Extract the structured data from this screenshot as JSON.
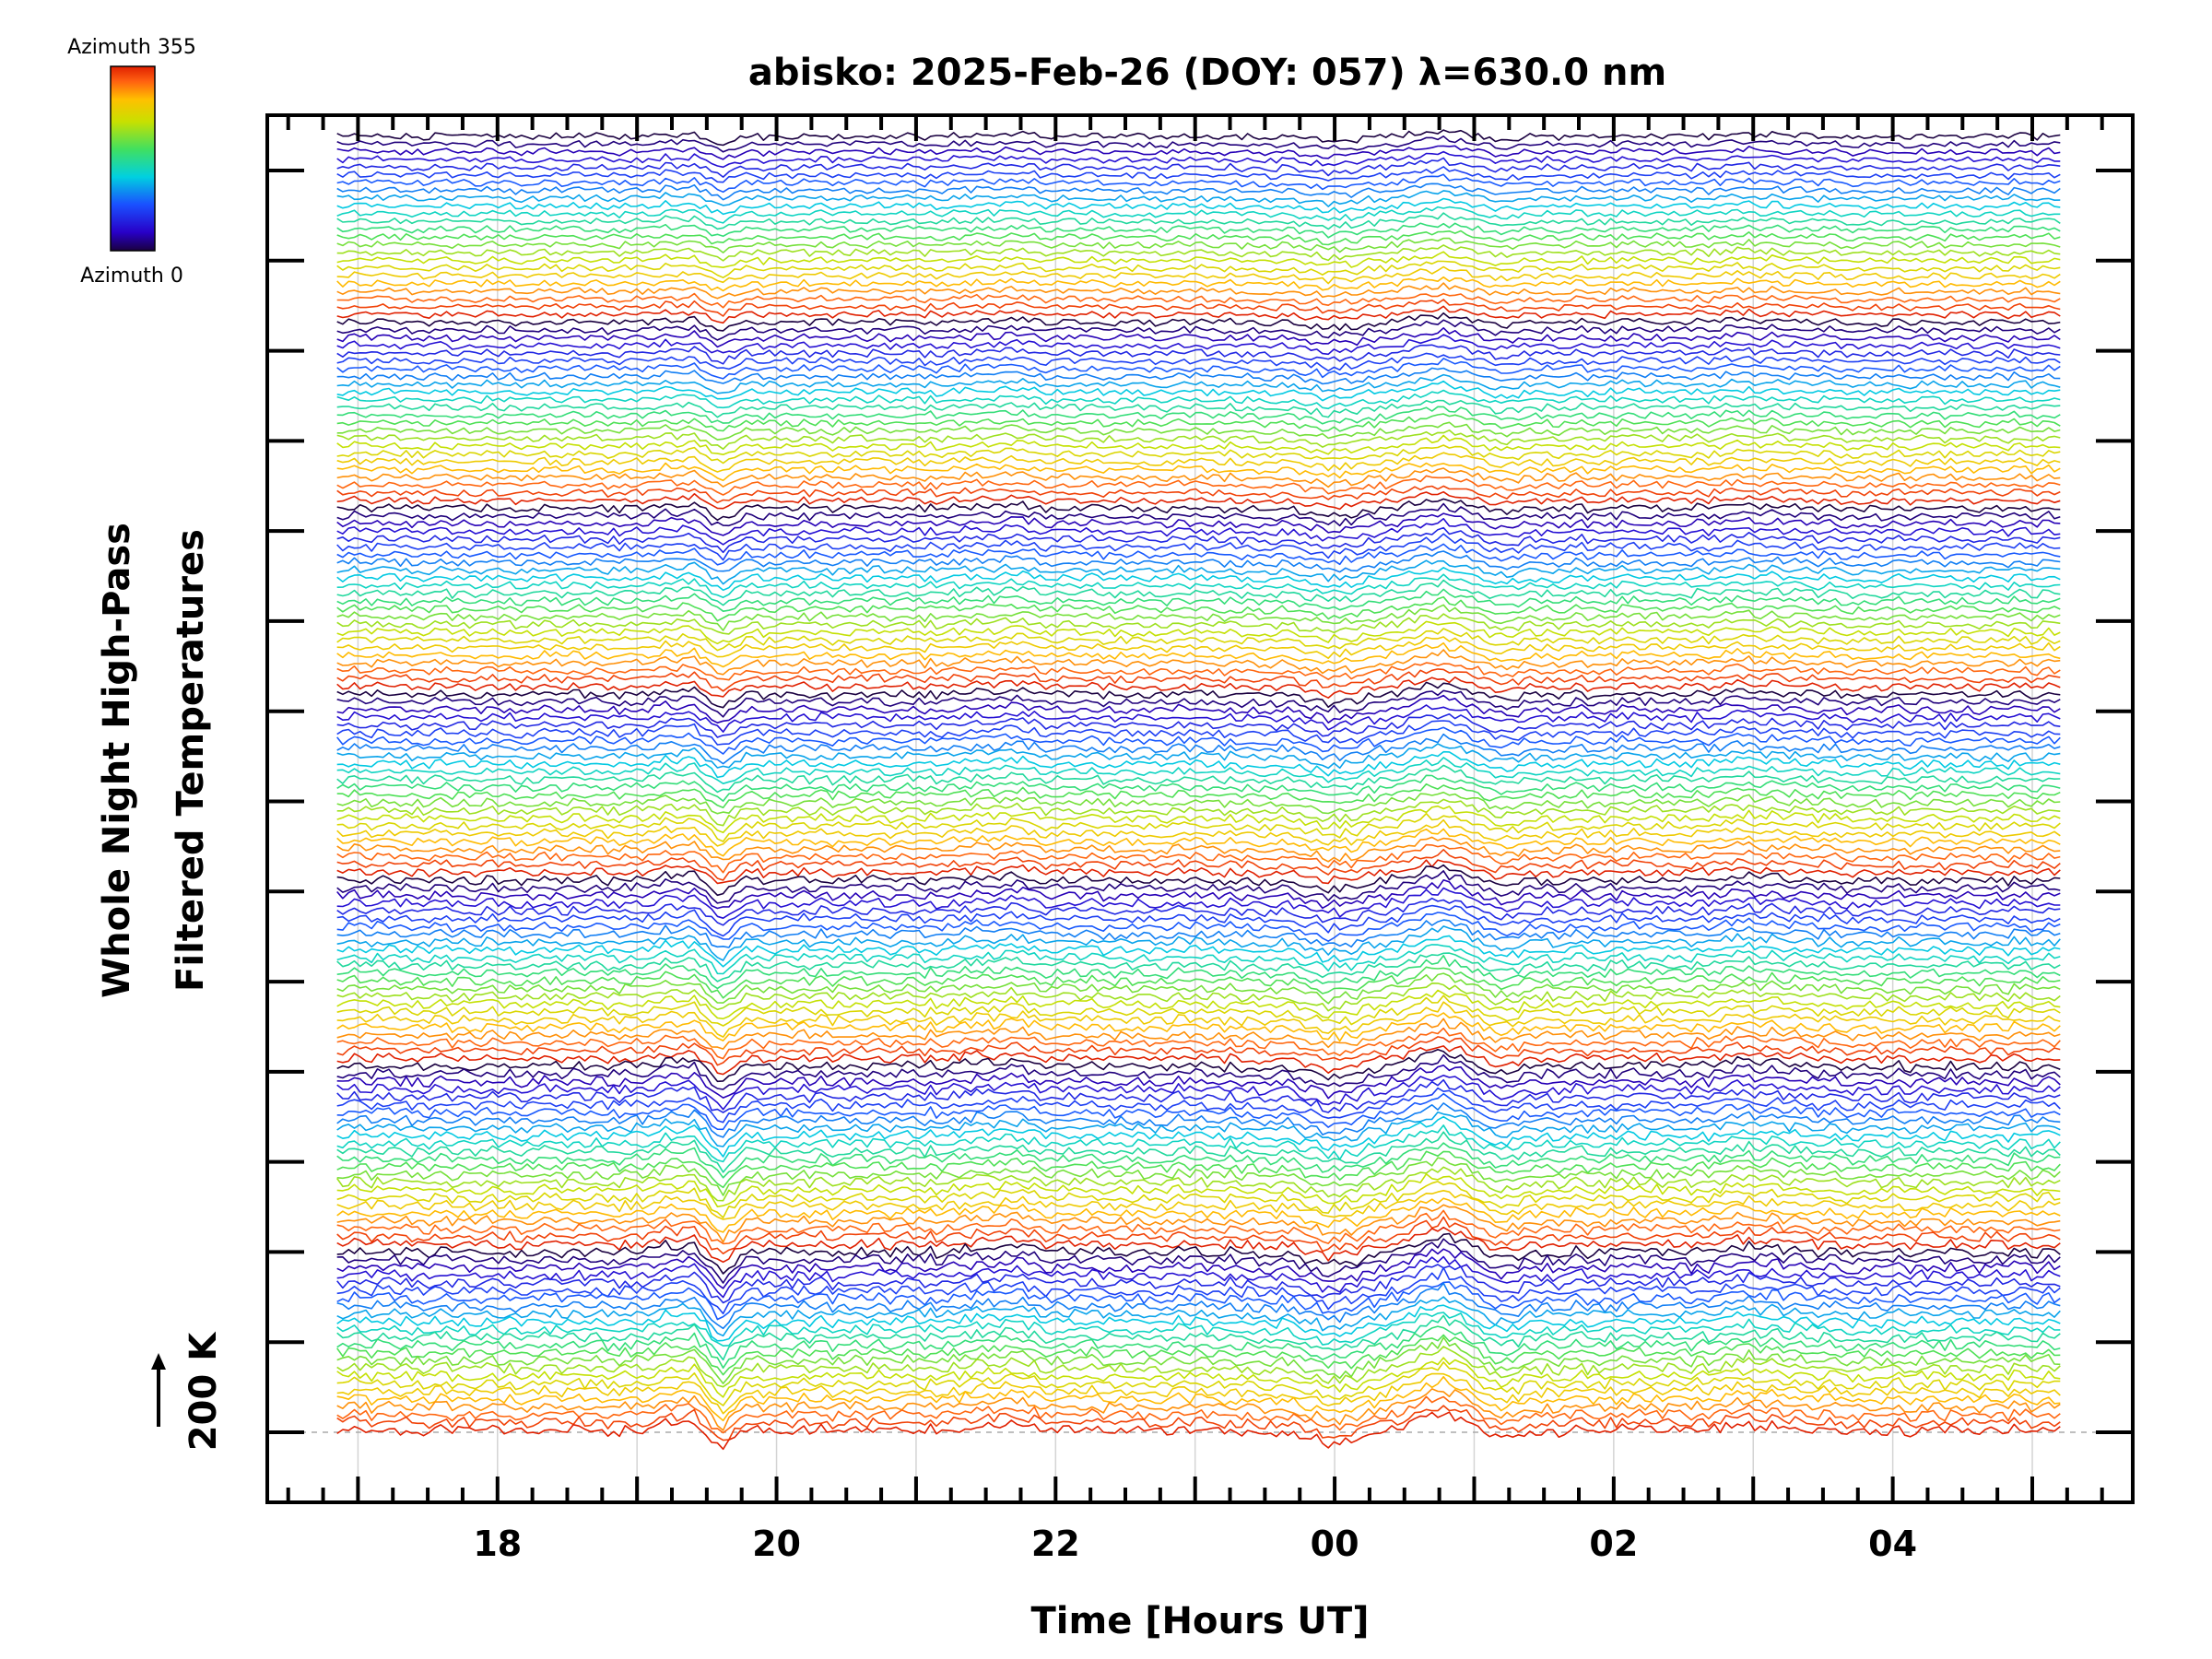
{
  "chart_data": {
    "type": "line",
    "title": "abisko: 2025-Feb-26 (DOY: 057) λ=630.0 nm",
    "xlabel": "Time [Hours UT]",
    "ylabel_line1": "Whole Night High-Pass",
    "ylabel_line2": "Filtered Temperatures",
    "scale_bar_label": "200 K",
    "scale_bar_kelvin": 200,
    "legend": {
      "top_label": "Azimuth 355",
      "bottom_label": "Azimuth 0",
      "azimuth_min": 0,
      "azimuth_max": 355
    },
    "x_axis": {
      "unit": "hours UT since 00:00 of previous day",
      "xlim": [
        16.35,
        29.72
      ],
      "data_start": 16.85,
      "data_end": 29.2,
      "major_ticks": [
        18,
        20,
        22,
        24,
        26,
        28
      ],
      "tick_labels": [
        "18",
        "20",
        "22",
        "00",
        "02",
        "04"
      ],
      "minor_tick_step": 0.25,
      "gridline_step": 1
    },
    "y_axis": {
      "major_tick_count": 15,
      "baseline_dashed": true
    },
    "series_layout": {
      "groups": [
        {
          "id": "group-1",
          "azimuth_count": 24
        },
        {
          "id": "group-2",
          "azimuth_count": 24
        },
        {
          "id": "group-3",
          "azimuth_count": 24
        },
        {
          "id": "group-4",
          "azimuth_count": 24
        },
        {
          "id": "group-5",
          "azimuth_count": 24
        },
        {
          "id": "group-6",
          "azimuth_count": 24
        },
        {
          "id": "group-7",
          "azimuth_count": 24
        }
      ],
      "common_features": [
        {
          "time": 19.6,
          "kind": "sharp dip",
          "amplitude": -1.6
        },
        {
          "time": 19.4,
          "kind": "bump before dip",
          "amplitude": 0.7
        },
        {
          "time": 24.0,
          "kind": "dip",
          "amplitude": -0.9
        },
        {
          "time": 24.8,
          "kind": "rise",
          "amplitude": 1.3
        },
        {
          "time": 25.15,
          "kind": "drop after rise",
          "amplitude": -0.6
        },
        {
          "time": 21.6,
          "kind": "small bump",
          "amplitude": 0.4
        },
        {
          "time": 27.0,
          "kind": "small bump",
          "amplitude": 0.35
        }
      ]
    },
    "grid": true
  }
}
